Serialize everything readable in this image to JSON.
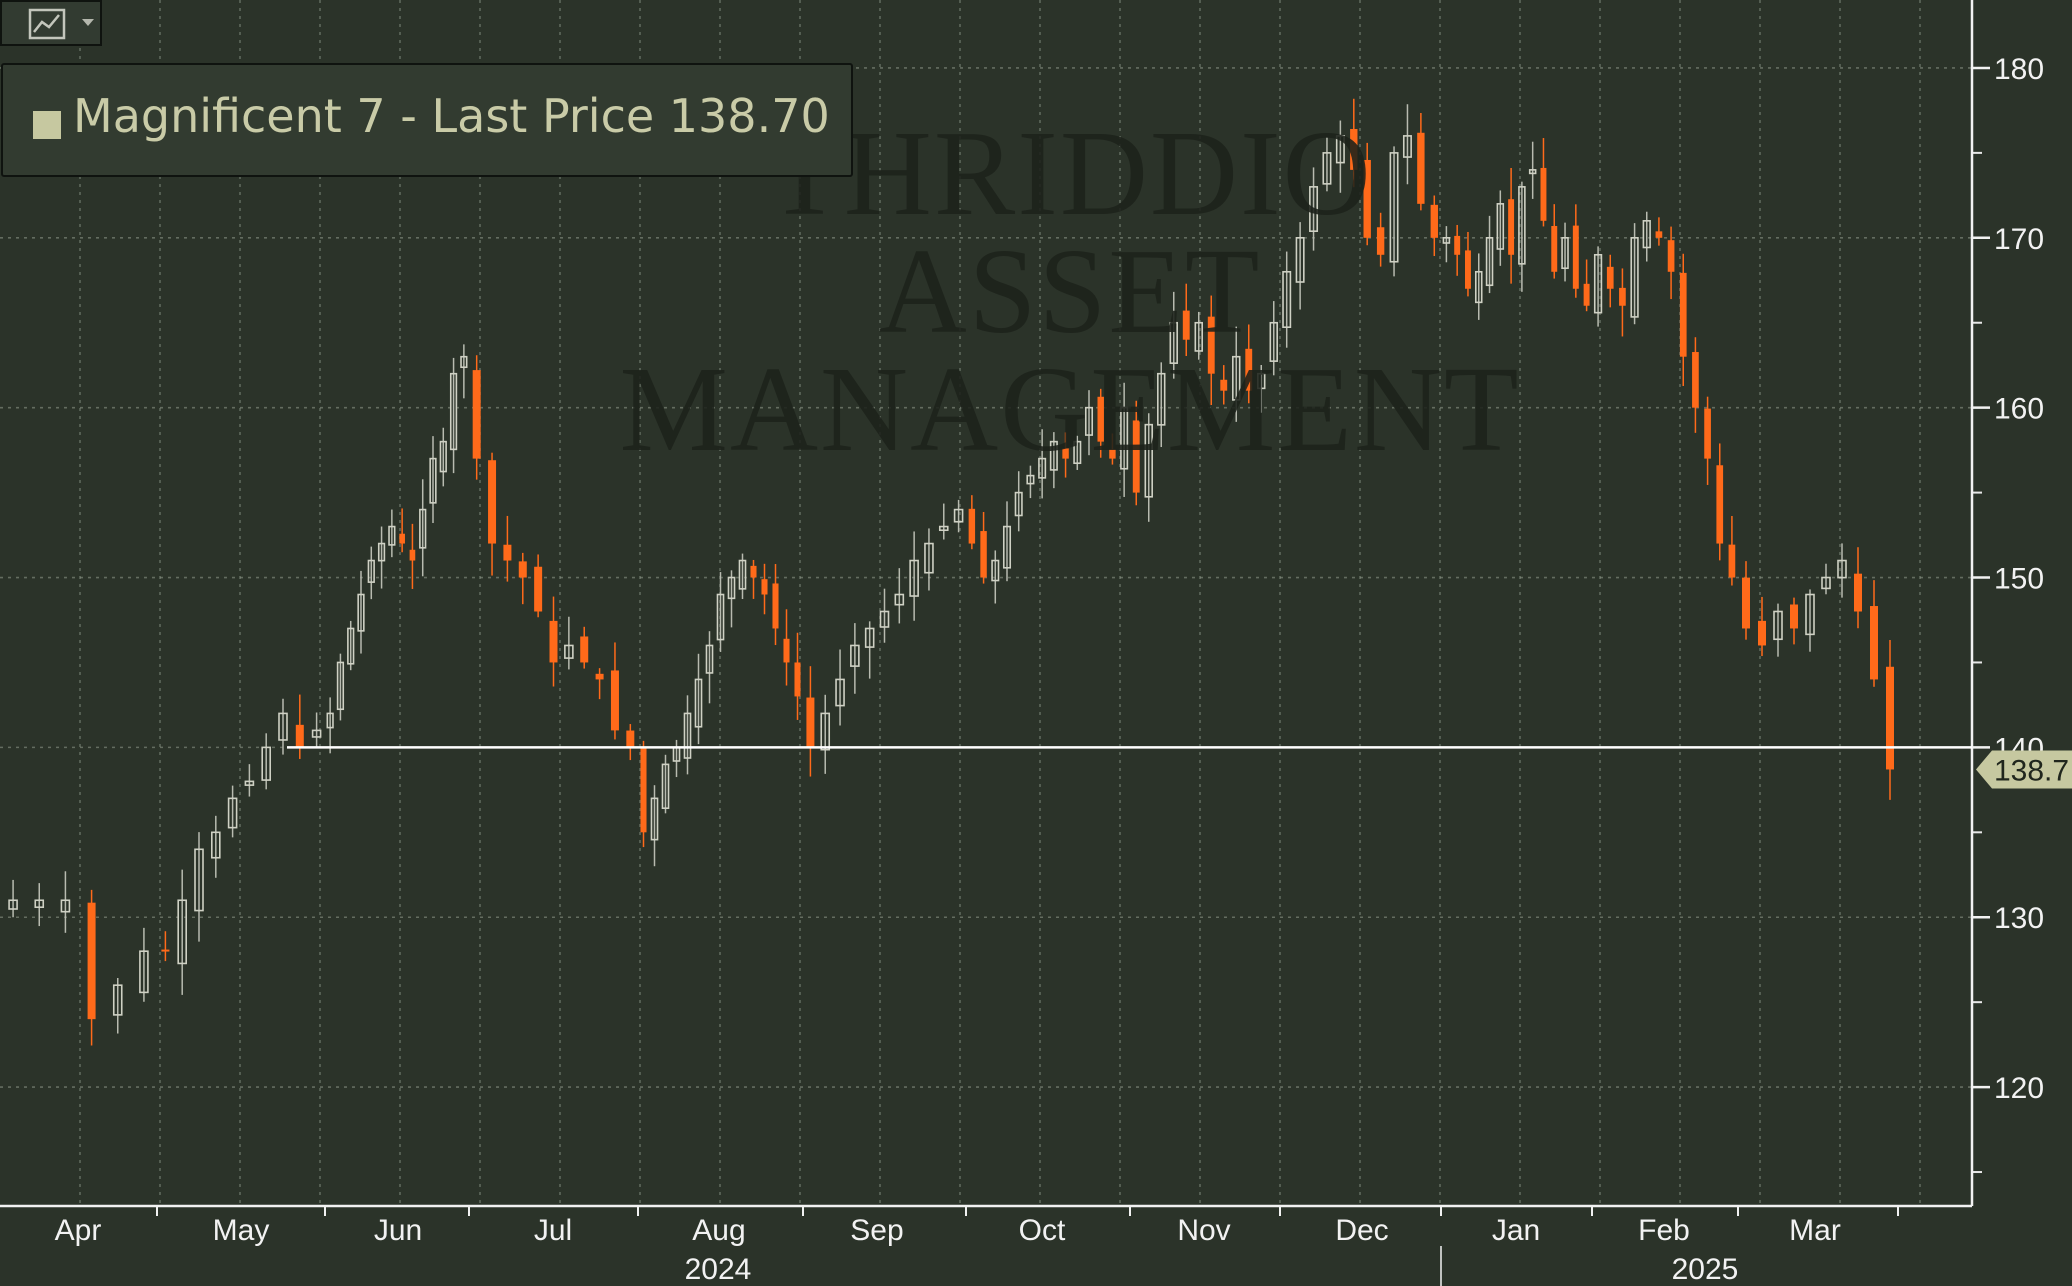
{
  "toolbar": {
    "chart_type_icon": "line-chart-icon",
    "dropdown_icon": "caret-down-icon"
  },
  "legend": {
    "label": "Magnificent 7 - Last Price 138.70"
  },
  "watermark": {
    "lines": [
      "THRIDDIO",
      "ASSET",
      "MANAGEMENT"
    ]
  },
  "colors": {
    "background": "#2b3329",
    "grid": "#8a9486",
    "up_candle": "#cfd1c4",
    "down_candle": "#ff6a1a",
    "price_line": "#ffffff",
    "price_tag_bg": "#c6c8a0"
  },
  "chart_data": {
    "type": "candlestick",
    "title": "",
    "series": [
      {
        "name": "Magnificent 7"
      }
    ],
    "ylim": [
      113,
      184
    ],
    "y_ticks": [
      120,
      130,
      140,
      150,
      160,
      170,
      180
    ],
    "months": [
      {
        "label": "Apr"
      },
      {
        "label": "May"
      },
      {
        "label": "Jun"
      },
      {
        "label": "Jul"
      },
      {
        "label": "Aug"
      },
      {
        "label": "Sep"
      },
      {
        "label": "Oct"
      },
      {
        "label": "Nov"
      },
      {
        "label": "Dec"
      },
      {
        "label": "Jan"
      },
      {
        "label": "Feb"
      },
      {
        "label": "Mar"
      }
    ],
    "years": [
      "2024",
      "2025"
    ],
    "last_price": 138.7,
    "last_price_label": "138.7",
    "reference_line": 140,
    "grid": true,
    "legend_position": "top-left",
    "monthly_closes": [
      [
        131,
        131,
        131,
        124,
        126,
        128
      ],
      [
        128,
        131,
        134,
        135,
        137,
        138,
        140,
        142,
        140,
        141
      ],
      [
        142,
        145,
        147,
        149,
        151,
        152,
        153,
        152,
        151,
        154,
        157,
        158,
        162,
        163
      ],
      [
        157,
        152,
        151,
        150,
        148,
        145,
        146,
        145,
        144,
        141,
        140
      ],
      [
        135,
        137,
        139,
        140,
        142,
        144,
        146,
        149,
        150,
        151,
        150,
        149,
        147,
        145,
        143
      ],
      [
        140,
        142,
        144,
        146,
        147,
        148,
        149,
        151,
        152,
        153,
        154
      ],
      [
        152,
        150,
        151,
        153,
        155,
        156,
        157,
        158,
        157,
        158,
        160,
        158,
        157,
        160
      ],
      [
        155,
        159,
        162,
        165,
        164,
        165,
        162,
        161,
        163,
        161,
        162,
        165
      ],
      [
        168,
        170,
        173,
        175,
        176,
        174,
        170,
        169,
        175,
        176,
        172,
        170
      ],
      [
        170,
        169,
        167,
        168,
        170,
        172,
        169,
        173,
        174,
        171,
        168,
        170,
        167,
        166
      ],
      [
        169,
        167,
        166,
        170,
        171,
        170,
        168,
        163,
        160,
        157,
        152,
        150
      ],
      [
        147,
        146,
        148,
        147,
        149,
        150,
        151,
        148,
        144,
        138.7
      ]
    ]
  }
}
